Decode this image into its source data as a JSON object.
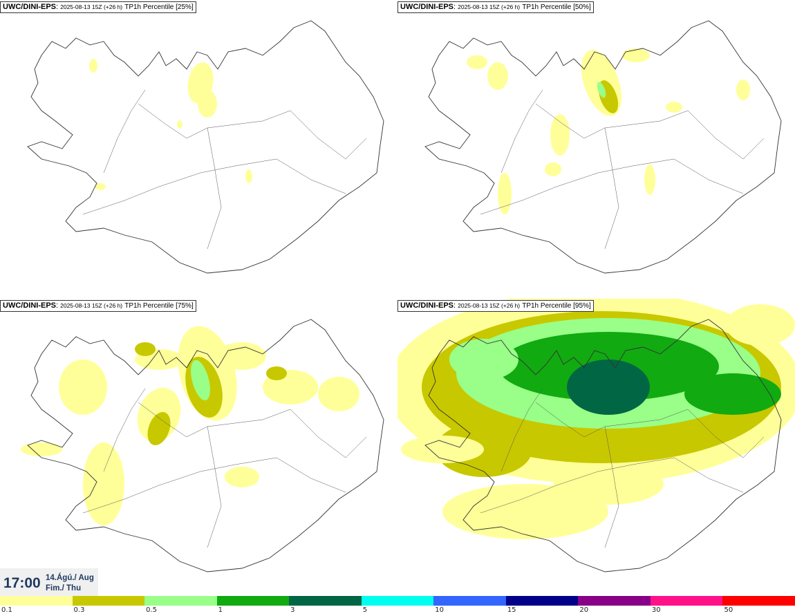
{
  "panels": [
    {
      "id": "p25",
      "model": "UWC/DINI-EPS",
      "meta": "2025-08-13 15Z (+26 h)",
      "param": "TP1h Percentile [25%]",
      "intensity": 1
    },
    {
      "id": "p50",
      "model": "UWC/DINI-EPS",
      "meta": "2025-08-13 15Z (+26 h)",
      "param": "TP1h Percentile [50%]",
      "intensity": 2
    },
    {
      "id": "p75",
      "model": "UWC/DINI-EPS",
      "meta": "2025-08-13 15Z (+26 h)",
      "param": "TP1h Percentile [75%]",
      "intensity": 3
    },
    {
      "id": "p95",
      "model": "UWC/DINI-EPS",
      "meta": "2025-08-13 15Z (+26 h)",
      "param": "TP1h Percentile [95%]",
      "intensity": 4
    }
  ],
  "time": {
    "main": "17:00",
    "date_line1": "14.Ágú./ Aug",
    "date_line2": "Fim./ Thu"
  },
  "colorbar": {
    "colors": [
      "#ffff99",
      "#c8c800",
      "#99ff88",
      "#11aa11",
      "#006644",
      "#00ffee",
      "#3366ff",
      "#000088",
      "#880088",
      "#ff1188",
      "#ff0000"
    ],
    "labels": [
      "0.1",
      "0.3",
      "0.5",
      "1",
      "3",
      "5",
      "10",
      "15",
      "20",
      "30",
      "50"
    ]
  }
}
